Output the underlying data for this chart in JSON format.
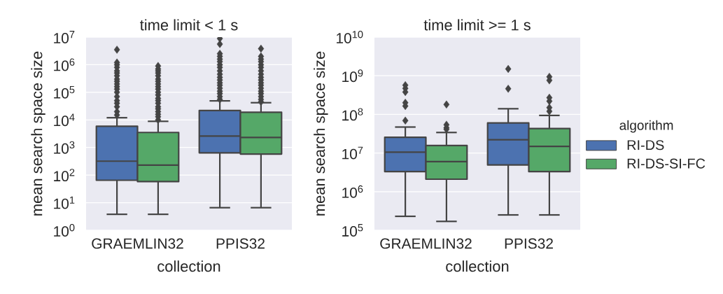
{
  "chart_data": [
    {
      "type": "box",
      "title": "time limit < 1 s",
      "xlabel": "collection",
      "ylabel": "mean search space size",
      "categories": [
        "GRAEMLIN32",
        "PPIS32"
      ],
      "log": "y",
      "ylim": [
        1,
        10000000
      ],
      "yticks": [
        {
          "value": 1,
          "label": "10$^{0}$"
        },
        {
          "value": 10,
          "label": "10$^{1}$"
        },
        {
          "value": 100,
          "label": "10$^{2}$"
        },
        {
          "value": 1000,
          "label": "10$^{3}$"
        },
        {
          "value": 10000,
          "label": "10$^{4}$"
        },
        {
          "value": 100000,
          "label": "10$^{5}$"
        },
        {
          "value": 1000000,
          "label": "10$^{6}$"
        },
        {
          "value": 10000000,
          "label": "10$^{7}$"
        }
      ],
      "grid": "y",
      "marker": "diamond",
      "series": [
        {
          "color": "#4c72b0",
          "boxes": [
            {
              "low": 3.8,
              "q1": 65,
              "median": 320,
              "q3": 5900,
              "high": 12000,
              "outliers": [
                15000,
                20000,
                30000,
                40000,
                50000,
                70000,
                100000,
                130000,
                160000,
                200000,
                250000,
                300000,
                400000,
                500000,
                600000,
                800000,
                1000000,
                1200000,
                3500000
              ]
            },
            {
              "low": 6.6,
              "q1": 640,
              "median": 2600,
              "q3": 22000,
              "high": 49000,
              "outliers": [
                55000,
                70000,
                90000,
                110000,
                140000,
                180000,
                220000,
                280000,
                350000,
                450000,
                600000,
                800000,
                1000000,
                1300000,
                1600000,
                2000000,
                2500000,
                5600000,
                8900000
              ]
            }
          ]
        },
        {
          "color": "#55a868",
          "boxes": [
            {
              "low": 3.8,
              "q1": 58,
              "median": 230,
              "q3": 3500,
              "high": 8900,
              "outliers": [
                10000,
                13000,
                16000,
                20000,
                25000,
                30000,
                40000,
                50000,
                60000,
                80000,
                100000,
                130000,
                160000,
                200000,
                250000,
                300000,
                400000,
                500000,
                600000,
                700000,
                900000
              ]
            },
            {
              "low": 6.6,
              "q1": 580,
              "median": 2300,
              "q3": 19000,
              "high": 42000,
              "outliers": [
                45000,
                55000,
                70000,
                90000,
                110000,
                140000,
                180000,
                220000,
                280000,
                350000,
                450000,
                600000,
                800000,
                1000000,
                1300000,
                1600000,
                2000000,
                3800000
              ]
            }
          ]
        }
      ]
    },
    {
      "type": "box",
      "title": "time limit >= 1 s",
      "xlabel": "collection",
      "ylabel": "mean search space size",
      "categories": [
        "GRAEMLIN32",
        "PPIS32"
      ],
      "log": "y",
      "ylim": [
        100000,
        10000000000
      ],
      "yticks": [
        {
          "value": 100000,
          "label": "10$^{5}$"
        },
        {
          "value": 1000000,
          "label": "10$^{6}$"
        },
        {
          "value": 10000000,
          "label": "10$^{7}$"
        },
        {
          "value": 100000000,
          "label": "10$^{8}$"
        },
        {
          "value": 1000000000,
          "label": "10$^{9}$"
        },
        {
          "value": 10000000000,
          "label": "10$^{10}$"
        }
      ],
      "grid": "y",
      "marker": "diamond",
      "legend": "right",
      "legend_title": "algorithm",
      "series": [
        {
          "name": "RI-DS",
          "color": "#4c72b0",
          "boxes": [
            {
              "low": 230000,
              "q1": 3300000,
              "median": 10500000,
              "q3": 25500000,
              "high": 47000000,
              "outliers": [
                69000000,
                165000000,
                200000000,
                380000000,
                470000000,
                570000000
              ]
            },
            {
              "low": 250000,
              "q1": 4900000,
              "median": 22000000,
              "q3": 60000000,
              "high": 140000000,
              "outliers": [
                460000000,
                1500000000
              ]
            }
          ]
        },
        {
          "name": "RI-DS-SI-FC",
          "color": "#55a868",
          "boxes": [
            {
              "low": 170000,
              "q1": 2100000,
              "median": 6000000,
              "q3": 15600000,
              "high": 34000000,
              "outliers": [
                41000000,
                45000000,
                54000000,
                180000000
              ]
            },
            {
              "low": 250000,
              "q1": 3300000,
              "median": 14800000,
              "q3": 43000000,
              "high": 94000000,
              "outliers": [
                120000000,
                150000000,
                220000000,
                270000000,
                760000000,
                940000000
              ]
            }
          ]
        }
      ]
    }
  ]
}
